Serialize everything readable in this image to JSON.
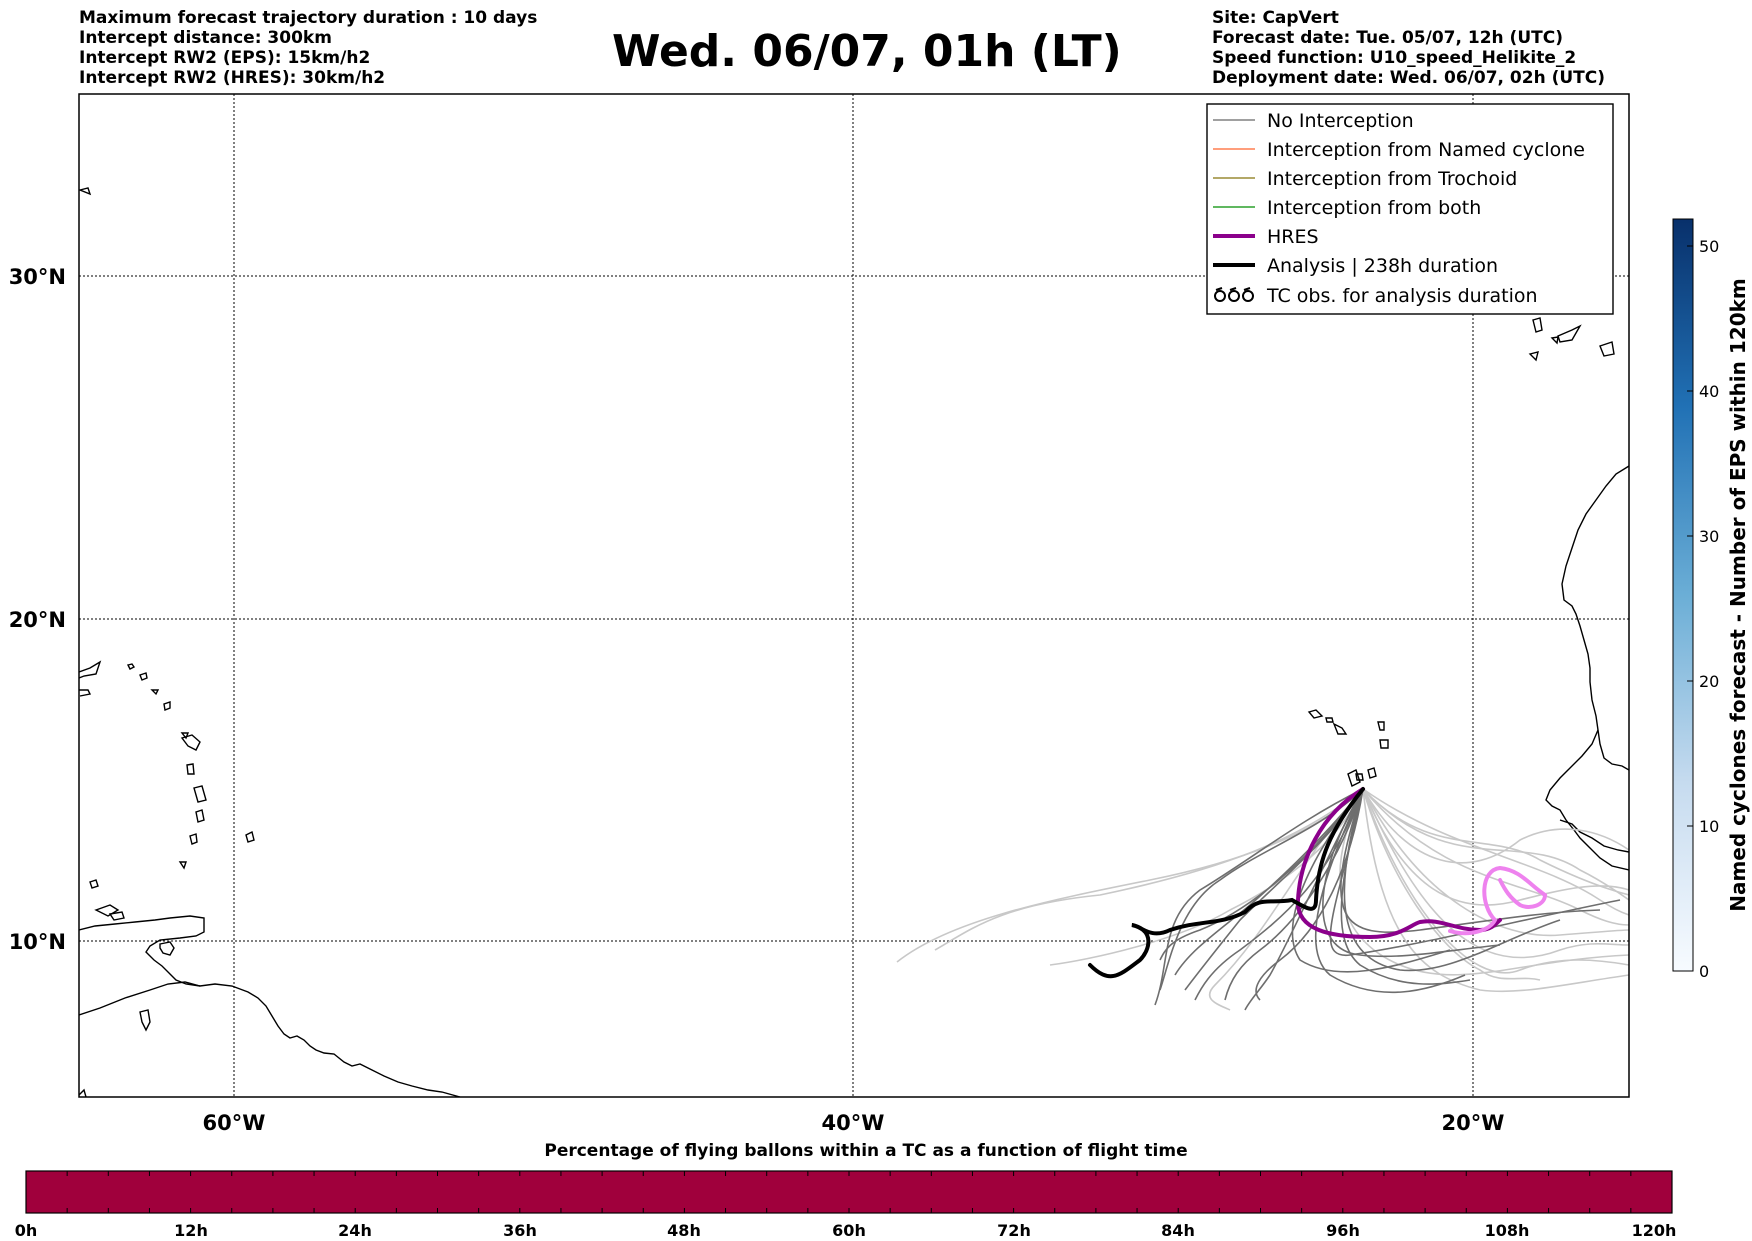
{
  "header_left": [
    "Maximum forecast trajectory duration : 10 days",
    "Intercept distance: 300km",
    "Intercept RW2 (EPS):  15km/h2",
    "Intercept RW2 (HRES): 30km/h2"
  ],
  "header_right": [
    "Site: CapVert",
    "Forecast date: Tue. 05/07, 12h (UTC)",
    "Speed function: U10_speed_Helikite_2",
    "Deployment date: Wed. 06/07, 02h (UTC)"
  ],
  "title": "Wed. 06/07, 01h (LT)",
  "map": {
    "lon_ticks": [
      "60°W",
      "40°W",
      "20°W"
    ],
    "lat_ticks": [
      "30°N",
      "20°N",
      "10°N"
    ]
  },
  "legend": [
    {
      "label": "No Interception",
      "color": "#808080",
      "kind": "thin"
    },
    {
      "label": "Interception from Named cyclone",
      "color": "#ff7f50",
      "kind": "thin"
    },
    {
      "label": "Interception from Trochoid",
      "color": "#9a8b35",
      "kind": "thin"
    },
    {
      "label": "Interception from both",
      "color": "#2ca02c",
      "kind": "thin"
    },
    {
      "label": "HRES",
      "color": "#8b008b",
      "kind": "thick"
    },
    {
      "label": "Analysis | 238h duration",
      "color": "#000000",
      "kind": "thick"
    },
    {
      "label": "TC obs. for analysis duration",
      "color": "#000000",
      "kind": "symbol"
    }
  ],
  "colorbar_right": {
    "label": "Named cyclones forecast - Number of EPS within 120km",
    "ticks": [
      "0",
      "10",
      "20",
      "30",
      "40",
      "50"
    ]
  },
  "colorbar_bottom": {
    "title": "Percentage of flying ballons within a TC as a function of flight time",
    "ticks": [
      "0h",
      "12h",
      "24h",
      "36h",
      "48h",
      "60h",
      "72h",
      "84h",
      "96h",
      "108h",
      "120h"
    ],
    "color": "#a0003c"
  }
}
